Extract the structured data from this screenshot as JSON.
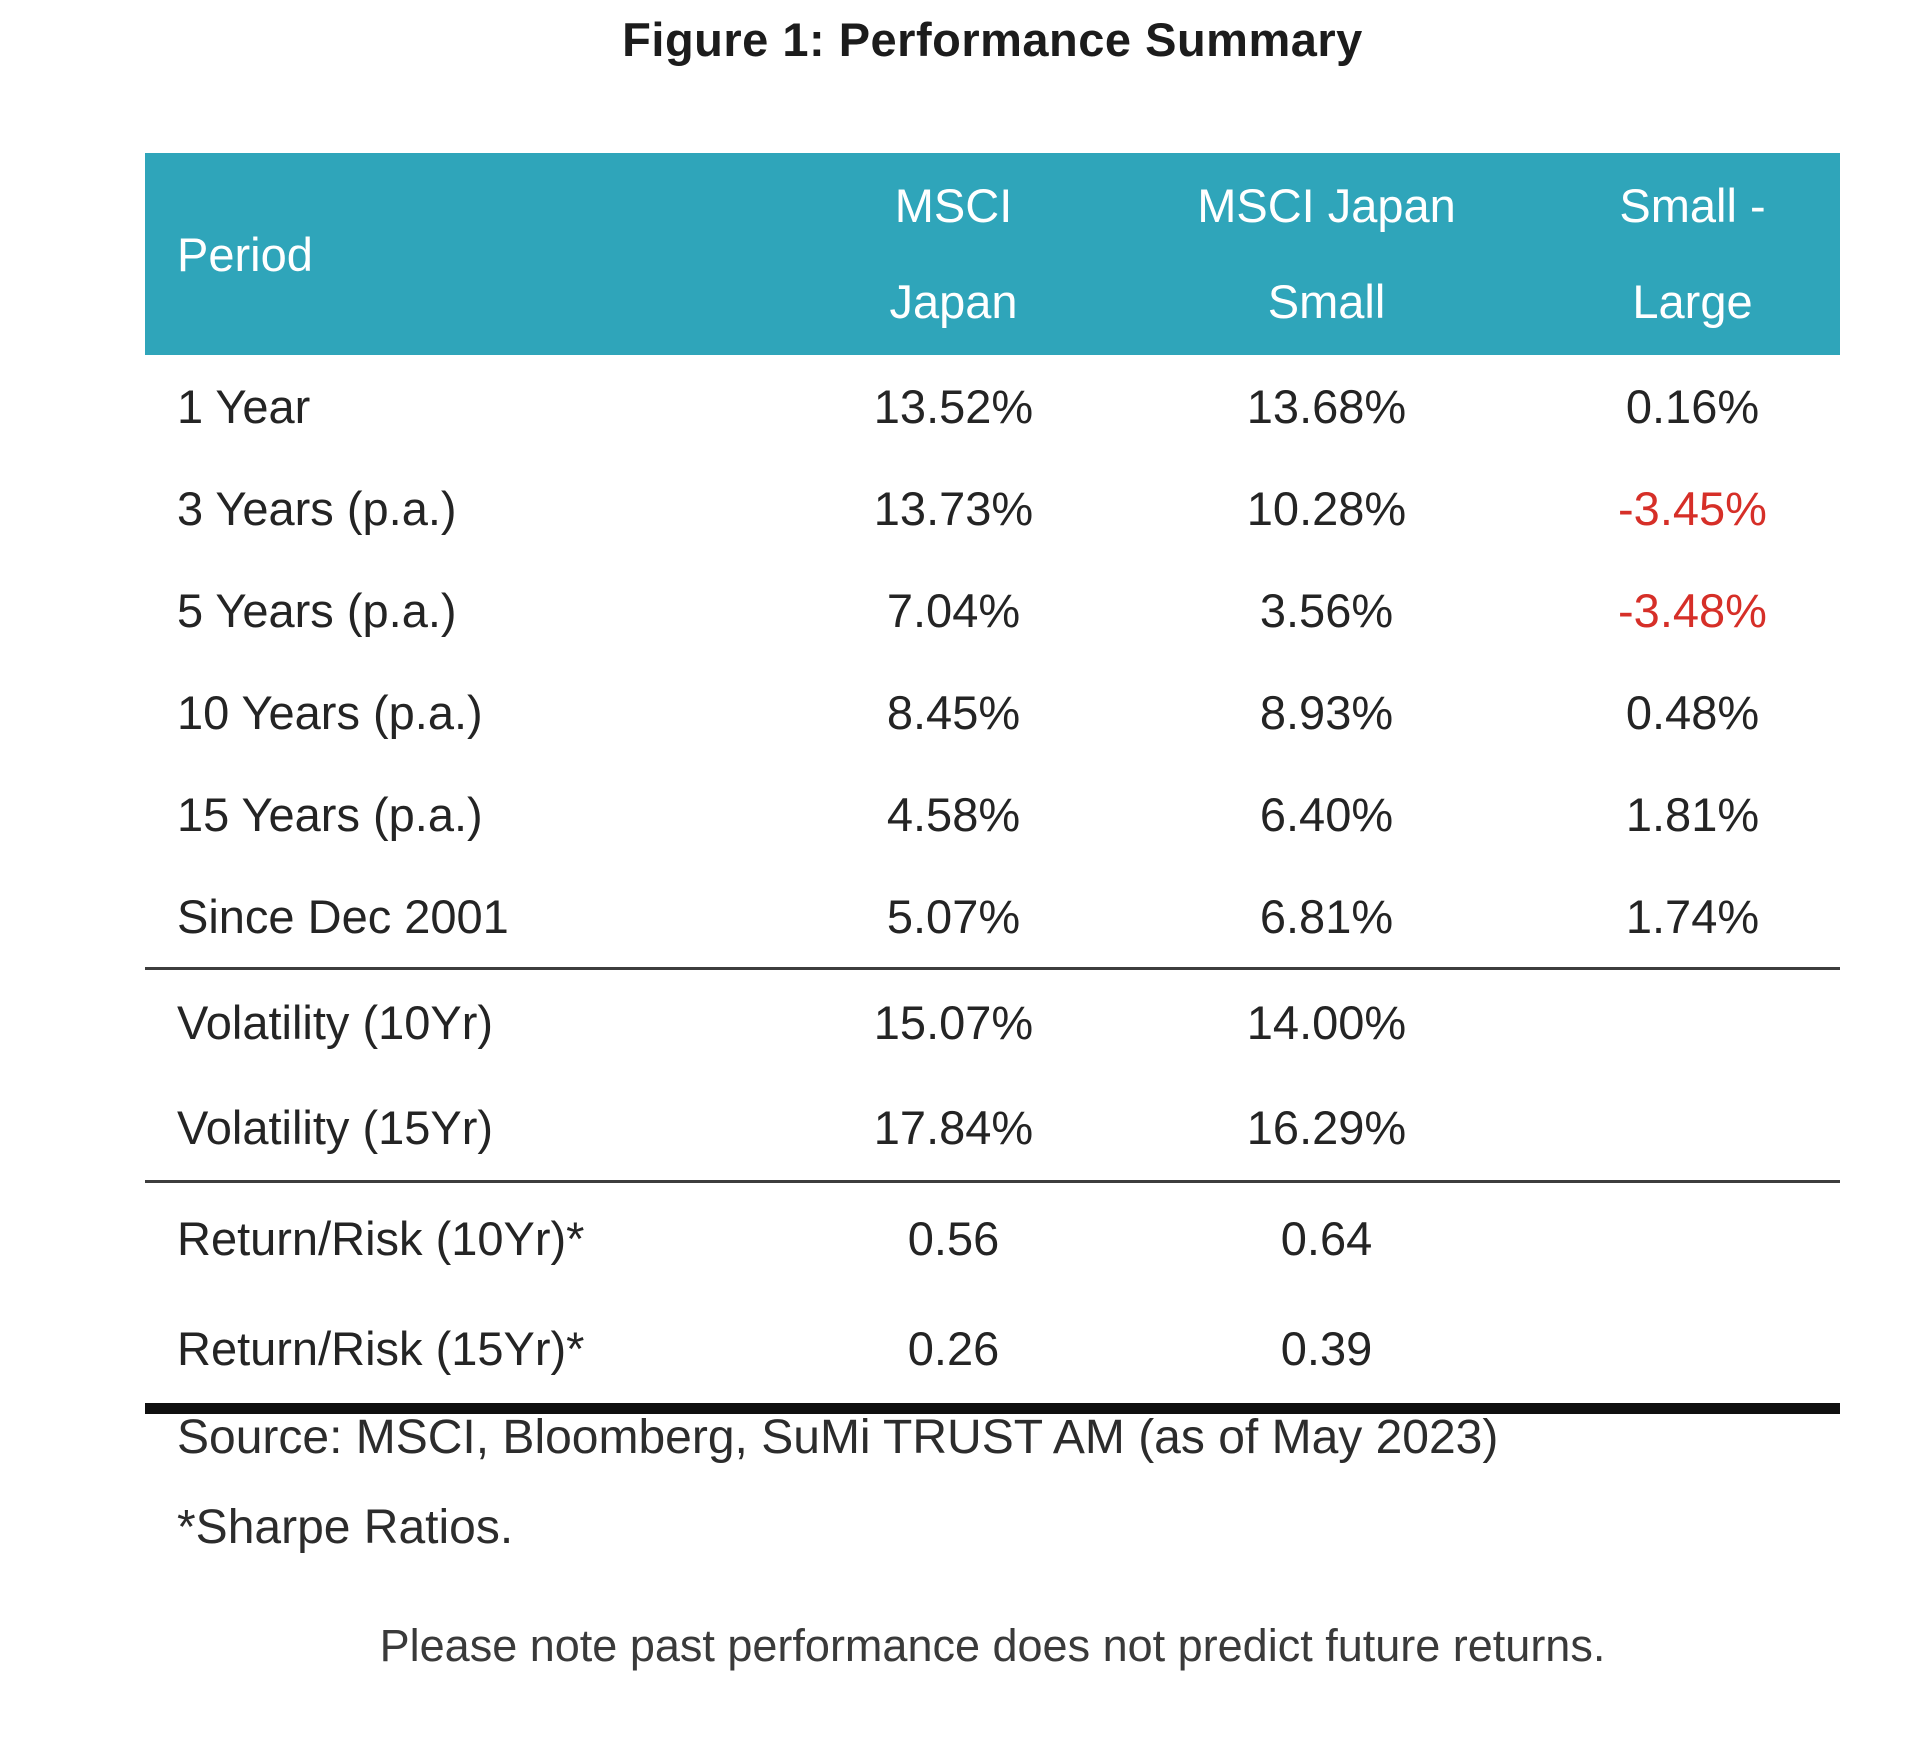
{
  "chart_data": {
    "type": "table",
    "title": "Figure 1: Performance Summary",
    "columns": [
      "Period",
      "MSCI Japan",
      "MSCI Japan Small",
      "Small - Large"
    ],
    "header_lines": [
      [
        "Period",
        ""
      ],
      [
        "MSCI",
        "Japan"
      ],
      [
        "MSCI Japan",
        "Small"
      ],
      [
        "Small -",
        "Large"
      ]
    ],
    "rows": [
      {
        "period": "1 Year",
        "msci_japan": "13.52%",
        "msci_japan_small": "13.68%",
        "small_minus_large": "0.16%"
      },
      {
        "period": "3 Years (p.a.)",
        "msci_japan": "13.73%",
        "msci_japan_small": "10.28%",
        "small_minus_large": "-3.45%"
      },
      {
        "period": "5 Years (p.a.)",
        "msci_japan": "7.04%",
        "msci_japan_small": "3.56%",
        "small_minus_large": "-3.48%"
      },
      {
        "period": "10 Years (p.a.)",
        "msci_japan": "8.45%",
        "msci_japan_small": "8.93%",
        "small_minus_large": "0.48%"
      },
      {
        "period": "15 Years (p.a.)",
        "msci_japan": "4.58%",
        "msci_japan_small": "6.40%",
        "small_minus_large": "1.81%"
      },
      {
        "period": "Since Dec 2001",
        "msci_japan": "5.07%",
        "msci_japan_small": "6.81%",
        "small_minus_large": "1.74%"
      },
      {
        "period": "Volatility (10Yr)",
        "msci_japan": "15.07%",
        "msci_japan_small": "14.00%",
        "small_minus_large": ""
      },
      {
        "period": "Volatility (15Yr)",
        "msci_japan": "17.84%",
        "msci_japan_small": "16.29%",
        "small_minus_large": ""
      },
      {
        "period": "Return/Risk (10Yr)*",
        "msci_japan": "0.56",
        "msci_japan_small": "0.64",
        "small_minus_large": ""
      },
      {
        "period": "Return/Risk (15Yr)*",
        "msci_japan": "0.26",
        "msci_japan_small": "0.39",
        "small_minus_large": ""
      }
    ],
    "annotations": {
      "source": "Source: MSCI, Bloomberg, SuMi TRUST AM (as of May 2023)",
      "footnote": "*Sharpe Ratios.",
      "disclaimer": "Please note past performance does not predict future returns."
    },
    "layout": {
      "legend": "none",
      "grid": "section dividers after row 6 and row 8, thick rule under last row",
      "negative_values_shown_in_red": [
        "-3.45%",
        "-3.48%"
      ]
    }
  },
  "colors": {
    "header_bg": "#2fa5ba",
    "header_text": "#ffffff",
    "body_text": "#242424",
    "negative": "#d62f28",
    "rule": "#3d3d3d",
    "thick_rule": "#0f0f0f"
  }
}
